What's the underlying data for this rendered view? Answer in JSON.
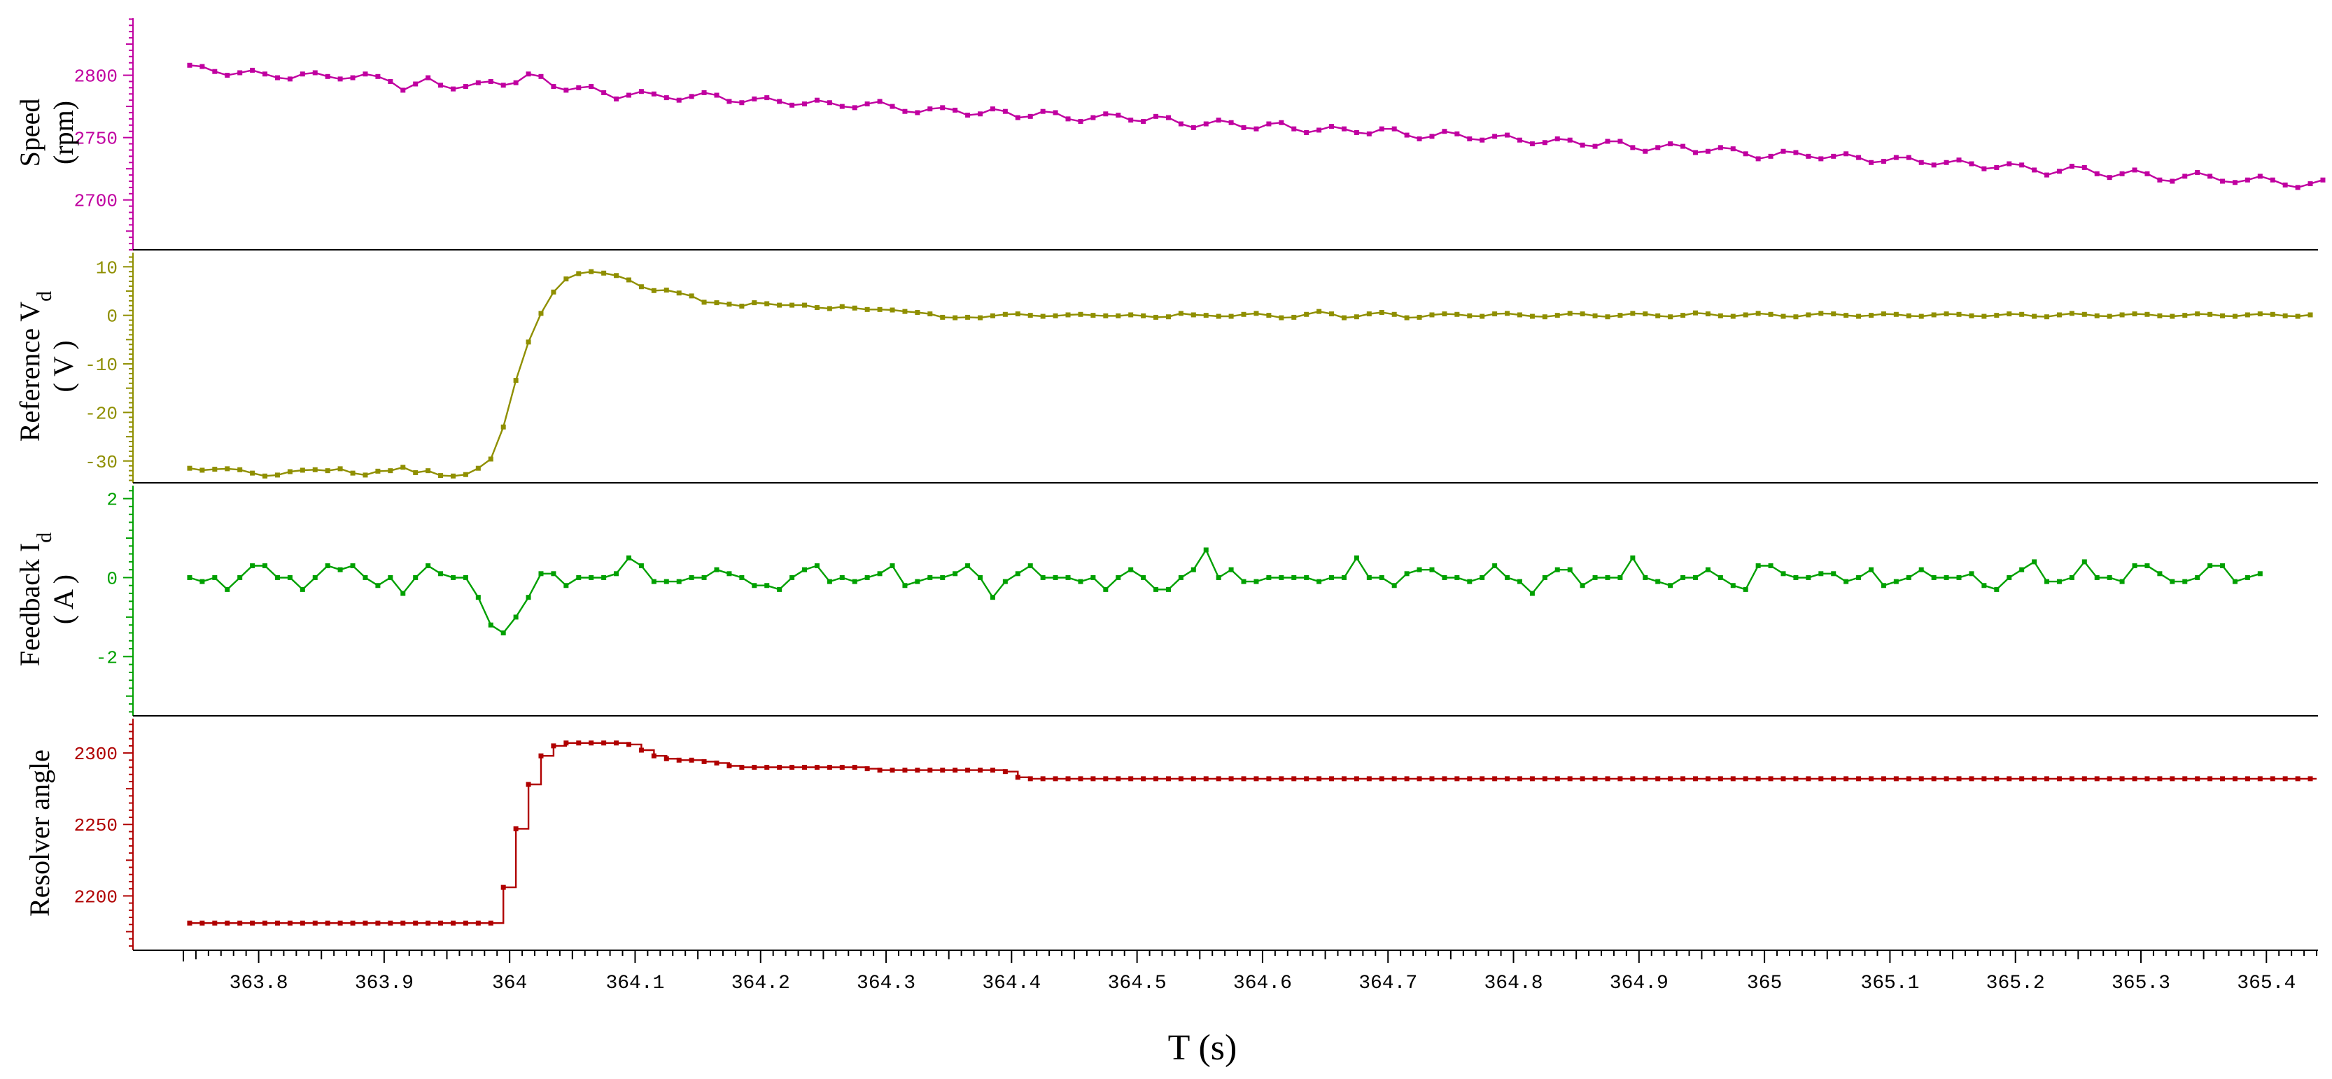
{
  "chart_data": {
    "type": "line",
    "xlabel": "T (s)",
    "xlim": [
      363.74,
      365.44
    ],
    "x_ticks": [
      "363.8",
      "363.9",
      "364",
      "364.1",
      "364.2",
      "364.3",
      "364.4",
      "364.5",
      "364.6",
      "364.7",
      "364.8",
      "364.9",
      "365",
      "365.1",
      "365.2",
      "365.3",
      "365.4"
    ],
    "x_start": 363.745,
    "x_step": 0.01,
    "panels": [
      {
        "key": "speed",
        "ylabel_lines": [
          "Speed",
          "(rpm)"
        ],
        "ylabel_subscript": "",
        "color": "#c000a0",
        "ylim": [
          2660,
          2848
        ],
        "y_ticks": [
          "2700",
          "2750",
          "2800"
        ],
        "step": false,
        "series": {
          "values": [
            2808,
            2807,
            2803,
            2800,
            2802,
            2804,
            2801,
            2798,
            2797,
            2801,
            2802,
            2799,
            2797,
            2798,
            2801,
            2799,
            2795,
            2788,
            2793,
            2798,
            2792,
            2789,
            2791,
            2794,
            2795,
            2792,
            2794,
            2801,
            2799,
            2791,
            2788,
            2790,
            2791,
            2786,
            2781,
            2784,
            2787,
            2785,
            2782,
            2780,
            2783,
            2786,
            2784,
            2779,
            2778,
            2781,
            2782,
            2779,
            2776,
            2777,
            2780,
            2778,
            2775,
            2774,
            2777,
            2779,
            2775,
            2771,
            2770,
            2773,
            2774,
            2772,
            2768,
            2769,
            2773,
            2771,
            2766,
            2767,
            2771,
            2770,
            2765,
            2763,
            2766,
            2769,
            2768,
            2764,
            2763,
            2767,
            2766,
            2761,
            2758,
            2761,
            2764,
            2762,
            2758,
            2757,
            2761,
            2762,
            2757,
            2754,
            2756,
            2759,
            2757,
            2754,
            2753,
            2757,
            2757,
            2752,
            2749,
            2751,
            2755,
            2753,
            2749,
            2748,
            2751,
            2752,
            2748,
            2745,
            2746,
            2749,
            2748,
            2744,
            2743,
            2747,
            2747,
            2742,
            2739,
            2742,
            2745,
            2743,
            2738,
            2739,
            2742,
            2741,
            2737,
            2733,
            2735,
            2739,
            2738,
            2735,
            2733,
            2735,
            2737,
            2734,
            2730,
            2731,
            2734,
            2734,
            2730,
            2728,
            2730,
            2732,
            2729,
            2725,
            2726,
            2729,
            2728,
            2724,
            2720,
            2723,
            2727,
            2726,
            2721,
            2718,
            2721,
            2724,
            2721,
            2716,
            2715,
            2719,
            2722,
            2719,
            2715,
            2714,
            2716,
            2719,
            2716,
            2712,
            2710,
            2713,
            2716
          ]
        }
      },
      {
        "key": "ref_vd",
        "ylabel_lines": [
          "Reference V",
          "( V )"
        ],
        "ylabel_subscript": "d",
        "color": "#8f8f00",
        "ylim": [
          -34.5,
          13.5
        ],
        "y_ticks": [
          "-30",
          "-20",
          "-10",
          "0",
          "10"
        ],
        "step": false,
        "series": {
          "values": [
            -31.5,
            -31.9,
            -31.7,
            -31.6,
            -31.8,
            -32.5,
            -33.1,
            -32.9,
            -32.2,
            -31.9,
            -31.8,
            -32.0,
            -31.6,
            -32.5,
            -32.9,
            -32.1,
            -32.0,
            -31.3,
            -32.4,
            -32.0,
            -33.0,
            -33.1,
            -32.8,
            -31.5,
            -29.6,
            -23.0,
            -13.4,
            -5.5,
            0.4,
            4.8,
            7.5,
            8.6,
            9.0,
            8.7,
            8.2,
            7.3,
            5.9,
            5.1,
            5.2,
            4.6,
            4.0,
            2.7,
            2.6,
            2.3,
            1.9,
            2.6,
            2.4,
            2.1,
            2.1,
            2.1,
            1.6,
            1.4,
            1.8,
            1.5,
            1.2,
            1.2,
            1.1,
            0.8,
            0.6,
            0.3,
            -0.4,
            -0.5,
            -0.4,
            -0.5,
            -0.1,
            0.2,
            0.3,
            0.0,
            -0.2,
            -0.1,
            0.1,
            0.2,
            0.0,
            -0.1,
            -0.1,
            0.1,
            -0.1,
            -0.4,
            -0.3,
            0.4,
            0.1,
            0.0,
            -0.2,
            -0.2,
            0.2,
            0.4,
            0.0,
            -0.5,
            -0.4,
            0.2,
            0.8,
            0.3,
            -0.5,
            -0.3,
            0.3,
            0.6,
            0.2,
            -0.5,
            -0.4,
            0.1,
            0.3,
            0.2,
            -0.1,
            -0.2,
            0.3,
            0.4,
            0.1,
            -0.2,
            -0.3,
            0.0,
            0.4,
            0.3,
            -0.1,
            -0.3,
            0.0,
            0.4,
            0.3,
            -0.1,
            -0.3,
            0.0,
            0.5,
            0.3,
            -0.1,
            -0.2,
            0.1,
            0.4,
            0.2,
            -0.2,
            -0.3,
            0.1,
            0.4,
            0.3,
            0.0,
            -0.2,
            0.0,
            0.3,
            0.2,
            -0.1,
            -0.2,
            0.1,
            0.3,
            0.2,
            -0.1,
            -0.2,
            0.0,
            0.3,
            0.2,
            -0.2,
            -0.3,
            0.1,
            0.4,
            0.2,
            -0.1,
            -0.2,
            0.1,
            0.3,
            0.2,
            -0.1,
            -0.2,
            0.0,
            0.3,
            0.2,
            -0.1,
            -0.2,
            0.1,
            0.3,
            0.2,
            -0.1,
            -0.2,
            0.1
          ]
        }
      },
      {
        "key": "fb_id",
        "ylabel_lines": [
          "Feedback I",
          "( A )"
        ],
        "ylabel_subscript": "d",
        "color": "#00a000",
        "ylim": [
          -3.5,
          2.4
        ],
        "y_ticks": [
          "-2",
          "0",
          "2"
        ],
        "step": false,
        "series": {
          "values": [
            0.0,
            -0.1,
            0.0,
            -0.3,
            0.0,
            0.3,
            0.3,
            0.0,
            0.0,
            -0.3,
            0.0,
            0.3,
            0.2,
            0.3,
            0.0,
            -0.2,
            0.0,
            -0.4,
            0.0,
            0.3,
            0.1,
            0.0,
            0.0,
            -0.5,
            -1.2,
            -1.4,
            -1.0,
            -0.5,
            0.1,
            0.1,
            -0.2,
            0.0,
            0.0,
            0.0,
            0.1,
            0.5,
            0.3,
            -0.1,
            -0.1,
            -0.1,
            0.0,
            0.0,
            0.2,
            0.1,
            0.0,
            -0.2,
            -0.2,
            -0.3,
            0.0,
            0.2,
            0.3,
            -0.1,
            0.0,
            -0.1,
            0.0,
            0.1,
            0.3,
            -0.2,
            -0.1,
            0.0,
            0.0,
            0.1,
            0.3,
            0.0,
            -0.5,
            -0.1,
            0.1,
            0.3,
            0.0,
            0.0,
            0.0,
            -0.1,
            0.0,
            -0.3,
            0.0,
            0.2,
            0.0,
            -0.3,
            -0.3,
            0.0,
            0.2,
            0.7,
            0.0,
            0.2,
            -0.1,
            -0.1,
            0.0,
            0.0,
            0.0,
            0.0,
            -0.1,
            0.0,
            0.0,
            0.5,
            0.0,
            0.0,
            -0.2,
            0.1,
            0.2,
            0.2,
            0.0,
            0.0,
            -0.1,
            0.0,
            0.3,
            0.0,
            -0.1,
            -0.4,
            0.0,
            0.2,
            0.2,
            -0.2,
            0.0,
            0.0,
            0.0,
            0.5,
            0.0,
            -0.1,
            -0.2,
            0.0,
            0.0,
            0.2,
            0.0,
            -0.2,
            -0.3,
            0.3,
            0.3,
            0.1,
            0.0,
            0.0,
            0.1,
            0.1,
            -0.1,
            0.0,
            0.2,
            -0.2,
            -0.1,
            0.0,
            0.2,
            0.0,
            0.0,
            0.0,
            0.1,
            -0.2,
            -0.3,
            0.0,
            0.2,
            0.4,
            -0.1,
            -0.1,
            0.0,
            0.4,
            0.0,
            0.0,
            -0.1,
            0.3,
            0.3,
            0.1,
            -0.1,
            -0.1,
            0.0,
            0.3,
            0.3,
            -0.1,
            0.0,
            0.1
          ]
        }
      },
      {
        "key": "resolver",
        "ylabel_lines": [
          "Resolver angle"
        ],
        "ylabel_subscript": "",
        "color": "#b00000",
        "ylim": [
          2162,
          2326
        ],
        "y_ticks": [
          "2200",
          "2250",
          "2300"
        ],
        "step": true,
        "series": {
          "values": [
            2181,
            2181,
            2181,
            2181,
            2181,
            2181,
            2181,
            2181,
            2181,
            2181,
            2181,
            2181,
            2181,
            2181,
            2181,
            2181,
            2181,
            2181,
            2181,
            2181,
            2181,
            2181,
            2181,
            2181,
            2181,
            2206,
            2247,
            2278,
            2298,
            2305,
            2307,
            2307,
            2307,
            2307,
            2307,
            2306,
            2302,
            2298,
            2296,
            2295,
            2295,
            2294,
            2293,
            2291,
            2290,
            2290,
            2290,
            2290,
            2290,
            2290,
            2290,
            2290,
            2290,
            2290,
            2289,
            2288,
            2288,
            2288,
            2288,
            2288,
            2288,
            2288,
            2288,
            2288,
            2288,
            2287,
            2283,
            2282,
            2282,
            2282,
            2282,
            2282,
            2282,
            2282,
            2282,
            2282,
            2282,
            2282,
            2282,
            2282,
            2282,
            2282,
            2282,
            2282,
            2282,
            2282,
            2282,
            2282,
            2282,
            2282,
            2282,
            2282,
            2282,
            2282,
            2282,
            2282,
            2282,
            2282,
            2282,
            2282,
            2282,
            2282,
            2282,
            2282,
            2282,
            2282,
            2282,
            2282,
            2282,
            2282,
            2282,
            2282,
            2282,
            2282,
            2282,
            2282,
            2282,
            2282,
            2282,
            2282,
            2282,
            2282,
            2282,
            2282,
            2282,
            2282,
            2282,
            2282,
            2282,
            2282,
            2282,
            2282,
            2282,
            2282,
            2282,
            2282,
            2282,
            2282,
            2282,
            2282,
            2282,
            2282,
            2282,
            2282,
            2282,
            2282,
            2282,
            2282,
            2282,
            2282,
            2282,
            2282,
            2282,
            2282,
            2282,
            2282,
            2282,
            2282,
            2282,
            2282,
            2282,
            2282,
            2282,
            2282,
            2282,
            2282,
            2282,
            2282,
            2282,
            2282
          ]
        }
      }
    ]
  }
}
